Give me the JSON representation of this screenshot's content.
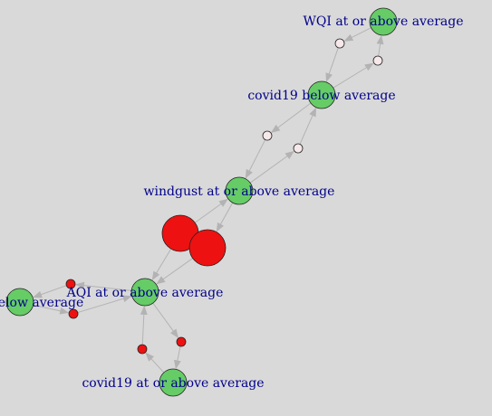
{
  "colors": {
    "background": "#d9d9d9",
    "item_node": "#66cc66",
    "rule_node": "#ee1111",
    "rule_node_light": "#f7e8ea",
    "edge": "#b3b3b3",
    "label": "#00008b"
  },
  "nodes": [
    {
      "id": "wqi",
      "label": "WQI at or above average",
      "kind": "item"
    },
    {
      "id": "covid_below",
      "label": "covid19 below average",
      "kind": "item"
    },
    {
      "id": "windgust",
      "label": "windgust at or above average",
      "kind": "item"
    },
    {
      "id": "aqi",
      "label": "AQI at or above average",
      "kind": "item"
    },
    {
      "id": "left_below",
      "label": "elow average",
      "kind": "item"
    },
    {
      "id": "covid_above",
      "label": "covid19 at or above average",
      "kind": "item"
    },
    {
      "id": "r1",
      "label": "",
      "kind": "rule_light"
    },
    {
      "id": "r2",
      "label": "",
      "kind": "rule_light"
    },
    {
      "id": "r3",
      "label": "",
      "kind": "rule_light"
    },
    {
      "id": "r4",
      "label": "",
      "kind": "rule_light"
    },
    {
      "id": "r5",
      "label": "",
      "kind": "rule"
    },
    {
      "id": "r6",
      "label": "",
      "kind": "rule"
    },
    {
      "id": "r7",
      "label": "",
      "kind": "rule"
    },
    {
      "id": "r8",
      "label": "",
      "kind": "rule"
    },
    {
      "id": "r9",
      "label": "",
      "kind": "rule"
    },
    {
      "id": "r10",
      "label": "",
      "kind": "rule"
    }
  ],
  "edges": [
    {
      "from": "wqi",
      "to": "r1"
    },
    {
      "from": "r1",
      "to": "covid_below"
    },
    {
      "from": "covid_below",
      "to": "r2"
    },
    {
      "from": "r2",
      "to": "wqi"
    },
    {
      "from": "covid_below",
      "to": "r3"
    },
    {
      "from": "r3",
      "to": "windgust"
    },
    {
      "from": "windgust",
      "to": "r4"
    },
    {
      "from": "r4",
      "to": "covid_below"
    },
    {
      "from": "r5",
      "to": "windgust"
    },
    {
      "from": "r5",
      "to": "aqi"
    },
    {
      "from": "windgust",
      "to": "r6"
    },
    {
      "from": "r6",
      "to": "aqi"
    },
    {
      "from": "aqi",
      "to": "r7"
    },
    {
      "from": "r7",
      "to": "left_below"
    },
    {
      "from": "left_below",
      "to": "r8"
    },
    {
      "from": "r8",
      "to": "aqi"
    },
    {
      "from": "aqi",
      "to": "r9"
    },
    {
      "from": "r9",
      "to": "covid_above"
    },
    {
      "from": "covid_above",
      "to": "r10"
    },
    {
      "from": "r10",
      "to": "aqi"
    }
  ]
}
